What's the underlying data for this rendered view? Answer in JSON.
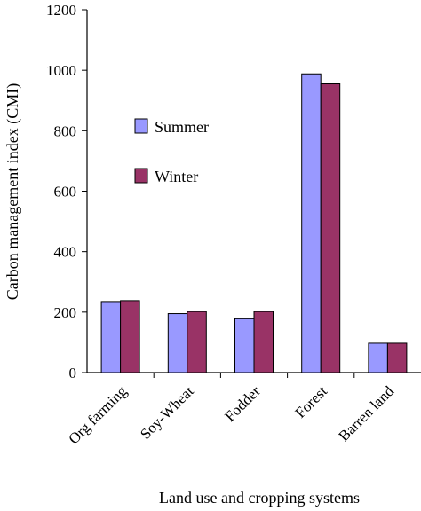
{
  "chart_data": {
    "type": "bar",
    "categories": [
      "Org farming",
      "Soy-Wheat",
      "Fodder",
      "Forest",
      "Barren land"
    ],
    "series": [
      {
        "name": "Summer",
        "color": "#9999ff",
        "values": [
          235,
          195,
          178,
          988,
          97
        ]
      },
      {
        "name": "Winter",
        "color": "#993366",
        "values": [
          238,
          202,
          202,
          955,
          97
        ]
      }
    ],
    "xlabel": "Land use and cropping systems",
    "ylabel": "Carbon management index (CMI)",
    "ylim": [
      0,
      1200
    ],
    "yticks": [
      "0",
      "200",
      "400",
      "600",
      "800",
      "1000",
      "1200"
    ],
    "grid": false,
    "legend_position": "upper-left inside plot"
  }
}
